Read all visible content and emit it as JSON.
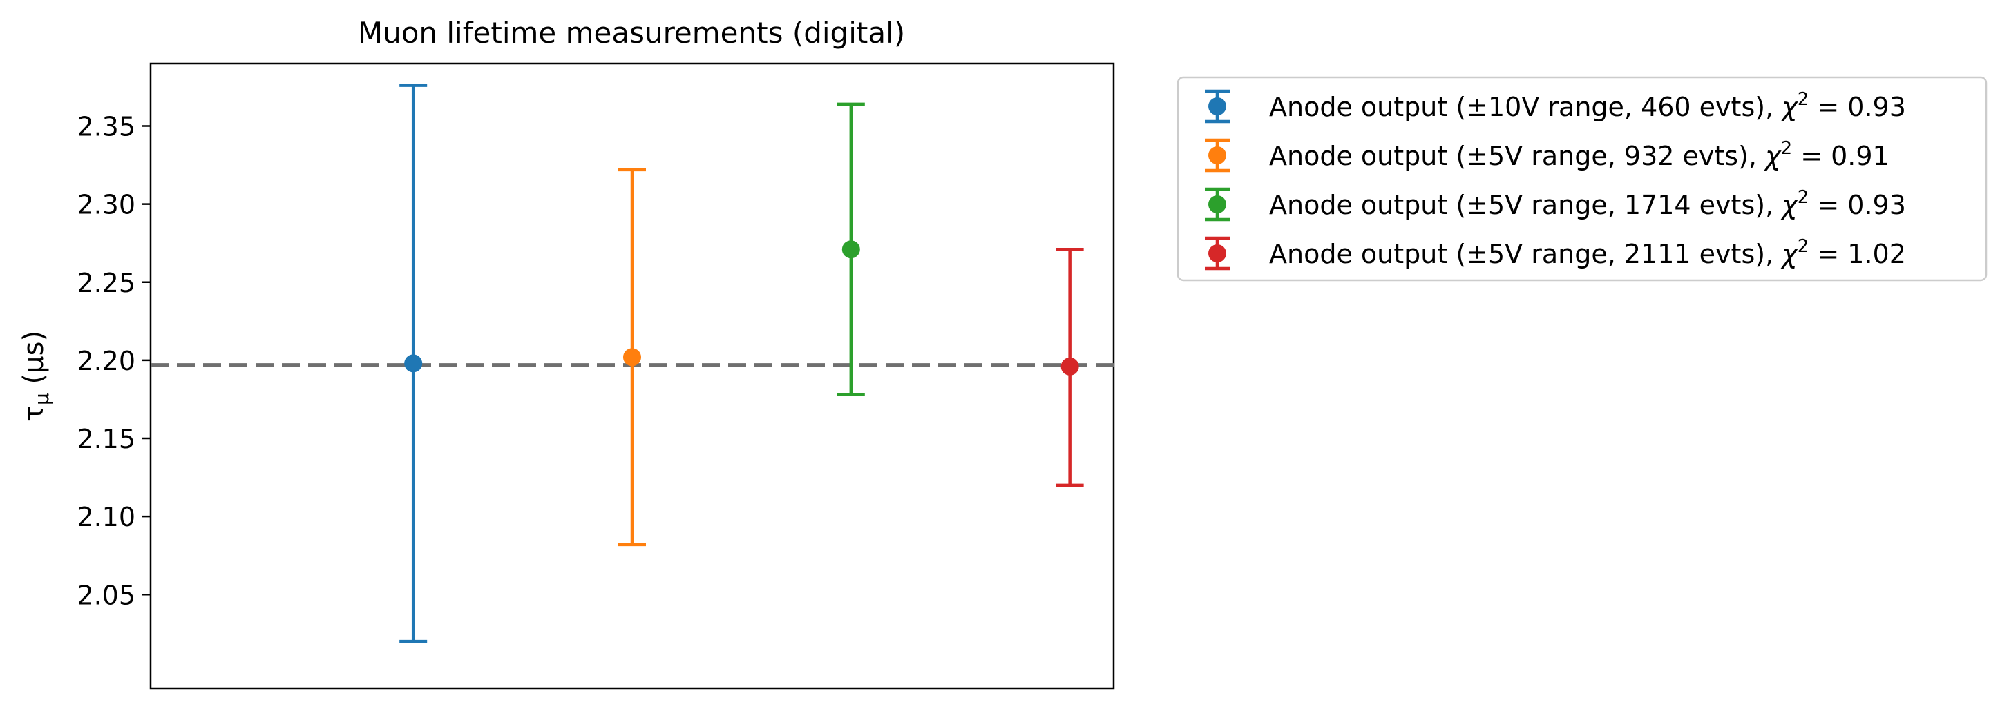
{
  "chart_data": {
    "type": "scatter",
    "title": "Muon lifetime measurements (digital)",
    "xlabel": "",
    "ylabel": "τ",
    "ylabel_sub": "μ",
    "ylabel_unit": " (μs)",
    "ylim": [
      1.99,
      2.39
    ],
    "xlim": [
      -1.2,
      3.2
    ],
    "yticks": [
      2.05,
      2.1,
      2.15,
      2.2,
      2.25,
      2.3,
      2.35
    ],
    "ytick_labels": [
      "2.05",
      "2.10",
      "2.15",
      "2.20",
      "2.25",
      "2.30",
      "2.35"
    ],
    "reference_line": {
      "y": 2.197,
      "style": "dashed",
      "color": "#6f6f6f"
    },
    "grid": false,
    "legend_position": "outside-right",
    "series": [
      {
        "name": "Anode output (±10V range, 460 evts), ",
        "chi2": "0.93",
        "x": 0,
        "y": 2.198,
        "err_low": 2.02,
        "err_high": 2.376,
        "color": "#1f77b4"
      },
      {
        "name": "Anode output (±5V range, 932 evts), ",
        "chi2": "0.91",
        "x": 1,
        "y": 2.202,
        "err_low": 2.082,
        "err_high": 2.322,
        "color": "#ff7f0e"
      },
      {
        "name": "Anode output (±5V range, 1714 evts), ",
        "chi2": "0.93",
        "x": 2,
        "y": 2.271,
        "err_low": 2.178,
        "err_high": 2.364,
        "color": "#2ca02c"
      },
      {
        "name": "Anode output (±5V range, 2111 evts), ",
        "chi2": "1.02",
        "x": 3,
        "y": 2.196,
        "err_low": 2.12,
        "err_high": 2.271,
        "color": "#d62728"
      }
    ]
  }
}
